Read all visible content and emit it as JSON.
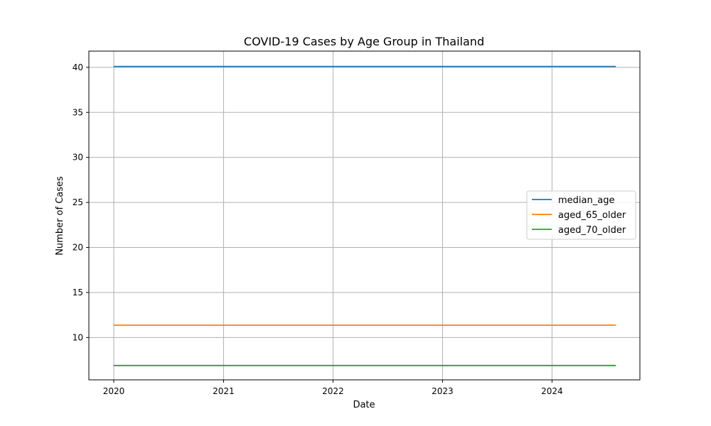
{
  "chart_data": {
    "type": "line",
    "title": "COVID-19 Cases by Age Group in Thailand",
    "xlabel": "Date",
    "ylabel": "Number of Cases",
    "x": [
      "2020-01-01",
      "2024-08-01"
    ],
    "xlim": [
      "2019-10-10",
      "2024-10-20"
    ],
    "ylim": [
      5.3,
      41.8
    ],
    "x_ticks": [
      {
        "label": "2020",
        "date": "2020-01-01"
      },
      {
        "label": "2021",
        "date": "2021-01-01"
      },
      {
        "label": "2022",
        "date": "2022-01-01"
      },
      {
        "label": "2023",
        "date": "2023-01-01"
      },
      {
        "label": "2024",
        "date": "2024-01-01"
      }
    ],
    "y_ticks": [
      10,
      15,
      20,
      25,
      30,
      35,
      40
    ],
    "grid": true,
    "legend_position": "center-right",
    "series": [
      {
        "name": "median_age",
        "color": "#1f77b4",
        "values": [
          40.1,
          40.1
        ]
      },
      {
        "name": "aged_65_older",
        "color": "#ff7f0e",
        "values": [
          11.373,
          11.373
        ]
      },
      {
        "name": "aged_70_older",
        "color": "#2ca02c",
        "values": [
          6.89,
          6.89
        ]
      }
    ]
  }
}
